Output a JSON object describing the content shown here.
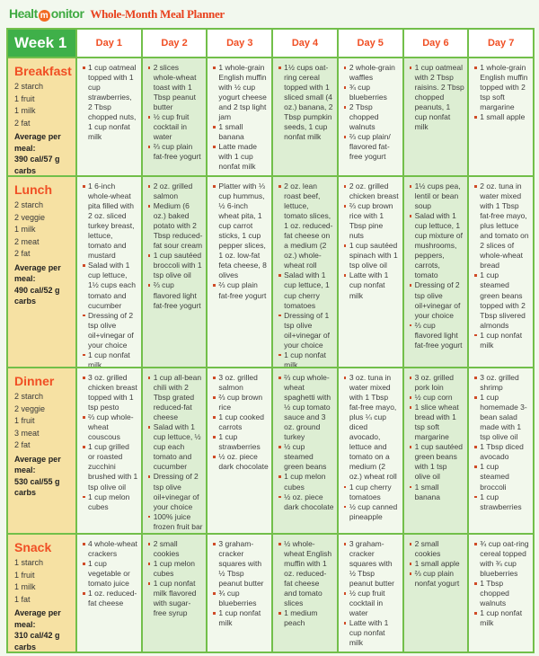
{
  "brand": {
    "logo_part1": "Healt",
    "logo_m": "m",
    "logo_part2": "onitor",
    "title": "Whole-Month Meal Planner"
  },
  "week_label": "Week 1",
  "days": [
    "Day 1",
    "Day 2",
    "Day 3",
    "Day 4",
    "Day 5",
    "Day 6",
    "Day 7"
  ],
  "colors": {
    "page_bg": "#f2f8ee",
    "grid_green": "#72bf4a",
    "week_green": "#3fb049",
    "accent_orange": "#f04f24",
    "label_tan": "#f6e1a3",
    "cell_light": "#f2f8ec",
    "cell_green": "#ddeed3",
    "bullet": "#cf4a26",
    "logo_green": "#3faa42",
    "logo_orange": "#f26a21",
    "title_red": "#e8411d"
  },
  "meals": [
    {
      "name": "Breakfast",
      "exchanges": [
        "2 starch",
        "1 fruit",
        "1 milk",
        "2 fat"
      ],
      "average_label": "Average per meal:",
      "average_value": "390 cal/57 g carbs",
      "days": [
        [
          "1 cup oatmeal topped with 1 cup strawberries, 2 Tbsp chopped nuts, 1 cup nonfat milk"
        ],
        [
          "2 slices whole-wheat toast with 1 Tbsp peanut butter",
          "½ cup fruit cocktail in water",
          "⅔ cup plain fat-free yogurt"
        ],
        [
          "1 whole-grain English muffin with ½ cup yogurt cheese and 2 tsp light jam",
          "1 small banana",
          "Latte made with 1 cup nonfat milk"
        ],
        [
          "1½ cups oat-ring cereal topped with 1 sliced small (4 oz.) banana, 2 Tbsp pumpkin seeds, 1 cup nonfat milk"
        ],
        [
          "2 whole-grain waffles",
          "¾ cup blueberries",
          "2 Tbsp chopped walnuts",
          "⅔ cup plain/ flavored fat-free yogurt"
        ],
        [
          "1 cup oatmeal with 2 Tbsp raisins. 2 Tbsp chopped peanuts, 1 cup nonfat milk"
        ],
        [
          "1 whole-grain English muffin topped with 2 tsp soft margarine",
          "1 small apple"
        ]
      ]
    },
    {
      "name": "Lunch",
      "exchanges": [
        "2 starch",
        "2 veggie",
        "1 milk",
        "2 meat",
        "2 fat"
      ],
      "average_label": "Average per meal:",
      "average_value": "490 cal/52 g carbs",
      "days": [
        [
          "1 6-inch whole-wheat pita filled with 2 oz. sliced turkey breast, lettuce, tomato and mustard",
          "Salad with 1 cup lettuce, 1½ cups each tomato and cucumber",
          "Dressing of 2 tsp olive oil+vinegar of your choice",
          "1 cup nonfat milk"
        ],
        [
          "2 oz. grilled salmon",
          "Medium (6 oz.) baked potato with 2 Tbsp reduced-fat sour cream",
          "1 cup sautéed broccoli with 1 tsp olive oil",
          "⅔ cup flavored light fat-free yogurt"
        ],
        [
          "Platter with ⅓ cup hummus, ½ 6-inch wheat pita, 1 cup carrot sticks, 1 cup pepper slices, 1 oz. low-fat feta cheese, 8 olives",
          "⅔ cup plain fat-free yogurt"
        ],
        [
          "2 oz. lean roast beef, lettuce, tomato slices, 1 oz. reduced-fat cheese on a medium (2 oz.) whole-wheat roll",
          "Salad with 1 cup lettuce, 1 cup cherry tomatoes",
          "Dressing of 1 tsp olive oil+vinegar of your choice",
          "1 cup nonfat milk"
        ],
        [
          "2 oz. grilled chicken breast",
          "⅔ cup brown rice with 1 Tbsp pine nuts",
          "1 cup sautéed spinach with 1 tsp olive oil",
          "Latte with 1 cup nonfat milk"
        ],
        [
          "1½ cups pea, lentil or bean soup",
          "Salad with 1 cup lettuce, 1 cup mixture of mushrooms, peppers, carrots, tomato",
          "Dressing of 2 tsp olive oil+vinegar of your choice",
          "⅔ cup flavored light fat-free yogurt"
        ],
        [
          "2 oz. tuna in water mixed with 1 Tbsp fat-free mayo, plus lettuce and tomato on 2 slices of whole-wheat bread",
          "1 cup steamed green beans topped with 2 Tbsp slivered almonds",
          "1 cup nonfat milk"
        ]
      ]
    },
    {
      "name": "Dinner",
      "exchanges": [
        "2 starch",
        "2 veggie",
        "1 fruit",
        "3 meat",
        "2 fat"
      ],
      "average_label": "Average per meal:",
      "average_value": "530 cal/55 g carbs",
      "days": [
        [
          "3 oz. grilled chicken breast topped with 1 tsp pesto",
          "⅔ cup whole-wheat couscous",
          "1 cup grilled or roasted zucchini brushed with 1 tsp olive oil",
          "1 cup melon cubes"
        ],
        [
          "1 cup all-bean chili with 2 Tbsp grated reduced-fat cheese",
          "Salad with 1 cup lettuce, ½ cup each tomato and cucumber",
          "Dressing of 2 tsp olive oil+vinegar of your choice",
          "100% juice frozen fruit bar"
        ],
        [
          "3 oz. grilled salmon",
          "⅔ cup brown rice",
          "1 cup cooked carrots",
          "1 cup strawberries",
          "½ oz. piece dark chocolate"
        ],
        [
          "⅔ cup whole-wheat spaghetti with ½ cup tomato sauce and 3 oz. ground turkey",
          "½ cup steamed green beans",
          "1 cup melon cubes",
          "½ oz. piece dark chocolate"
        ],
        [
          "3 oz. tuna in water mixed with 1 Tbsp fat-free mayo, plus ¼ cup diced avocado, lettuce and tomato on a medium (2 oz.) wheat roll",
          "1 cup cherry tomatoes",
          "½ cup canned pineapple"
        ],
        [
          "3 oz. grilled pork loin",
          "½ cup corn",
          "1 slice wheat bread with 1 tsp soft margarine",
          "1 cup sautéed green beans with 1 tsp olive oil",
          "1 small banana"
        ],
        [
          "3 oz. grilled shrimp",
          "1 cup homemade 3-bean salad made with 1 tsp olive oil",
          "1 Tbsp diced avocado",
          "1 cup steamed broccoli",
          "1 cup strawberries"
        ]
      ]
    },
    {
      "name": "Snack",
      "exchanges": [
        "1 starch",
        "1 fruit",
        "1 milk",
        "1 fat"
      ],
      "average_label": "Average per meal:",
      "average_value": "310 cal/42 g carbs",
      "days": [
        [
          "4 whole-wheat crackers",
          "1 cup vegetable or tomato juice",
          "1 oz. reduced-fat cheese"
        ],
        [
          "2 small cookies",
          "1 cup melon cubes",
          "1 cup nonfat milk flavored with sugar-free syrup"
        ],
        [
          "3 graham-cracker squares with ½ Tbsp peanut butter",
          "¾ cup blueberries",
          "1 cup nonfat milk"
        ],
        [
          "½ whole-wheat English muffin with 1 oz. reduced-fat cheese and tomato slices",
          "1 medium peach"
        ],
        [
          "3 graham-cracker squares with ½ Tbsp peanut butter",
          "½ cup fruit cocktail in water",
          "Latte with 1 cup nonfat milk"
        ],
        [
          "2 small cookies",
          "1 small apple",
          "⅔ cup plain nonfat yogurt"
        ],
        [
          "¾ cup oat-ring cereal topped with ¾ cup blueberries",
          "1 Tbsp chopped walnuts",
          "1 cup nonfat milk"
        ]
      ]
    }
  ]
}
